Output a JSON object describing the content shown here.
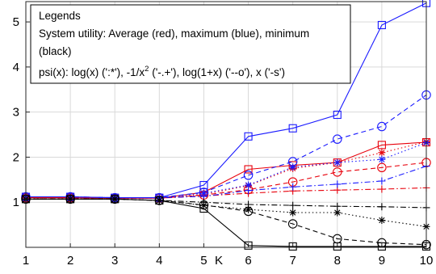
{
  "chart_data": {
    "type": "line",
    "title": "",
    "xlabel": "K",
    "ylabel": "",
    "x": [
      1,
      2,
      3,
      4,
      5,
      6,
      7,
      8,
      9,
      10
    ],
    "xlim": [
      1,
      10
    ],
    "ylim": [
      0,
      5.45
    ],
    "xticks": [
      "1",
      "2",
      "3",
      "4",
      "5",
      "6",
      "7",
      "8",
      "9",
      "10"
    ],
    "yticks": [
      "1",
      "2",
      "3",
      "4",
      "5"
    ],
    "grid": true,
    "colors": {
      "red": "#e8000b",
      "blue": "#1a1aff",
      "black": "#000000"
    },
    "legend": {
      "placement": "top-left",
      "title": "Legends",
      "line1": "System utility: Average (red), maximum (blue), minimum",
      "line2": "(black)",
      "line3_prefix": "psi(x): log(x) (':*'), -1/x",
      "line3_sup": "2",
      "line3_suffix": " ('-.+'), log(1+x) ('--o'), x ('-s')"
    },
    "series": [
      {
        "color": "red",
        "style": "dotted",
        "marker": "star",
        "values": [
          1.1,
          1.1,
          1.09,
          1.09,
          1.17,
          1.37,
          1.75,
          1.88,
          2.1,
          2.34
        ]
      },
      {
        "color": "red",
        "style": "dashdot",
        "marker": "plus",
        "values": [
          1.1,
          1.1,
          1.09,
          1.09,
          1.14,
          1.2,
          1.25,
          1.27,
          1.29,
          1.32
        ]
      },
      {
        "color": "red",
        "style": "dashed",
        "marker": "circle",
        "values": [
          1.1,
          1.1,
          1.09,
          1.09,
          1.16,
          1.28,
          1.45,
          1.67,
          1.77,
          1.88
        ]
      },
      {
        "color": "red",
        "style": "solid",
        "marker": "square",
        "values": [
          1.1,
          1.1,
          1.09,
          1.09,
          1.22,
          1.73,
          1.82,
          1.88,
          2.27,
          2.33
        ]
      },
      {
        "color": "blue",
        "style": "dotted",
        "marker": "star",
        "values": [
          1.12,
          1.12,
          1.1,
          1.1,
          1.2,
          1.38,
          1.78,
          1.88,
          1.95,
          2.32
        ]
      },
      {
        "color": "blue",
        "style": "dashdot",
        "marker": "plus",
        "values": [
          1.12,
          1.12,
          1.1,
          1.1,
          1.13,
          1.26,
          1.34,
          1.4,
          1.47,
          1.8
        ]
      },
      {
        "color": "blue",
        "style": "dashed",
        "marker": "circle",
        "values": [
          1.12,
          1.12,
          1.1,
          1.1,
          1.22,
          1.6,
          1.9,
          2.4,
          2.68,
          3.38
        ]
      },
      {
        "color": "blue",
        "style": "solid",
        "marker": "square",
        "values": [
          1.12,
          1.12,
          1.1,
          1.1,
          1.38,
          2.46,
          2.64,
          2.94,
          4.93,
          5.42
        ]
      },
      {
        "color": "black",
        "style": "dotted",
        "marker": "star",
        "values": [
          1.07,
          1.07,
          1.07,
          1.04,
          0.93,
          0.84,
          0.77,
          0.77,
          0.6,
          0.46
        ]
      },
      {
        "color": "black",
        "style": "dashdot",
        "marker": "plus",
        "values": [
          1.07,
          1.07,
          1.07,
          1.04,
          1.0,
          0.95,
          0.93,
          0.91,
          0.9,
          0.88
        ]
      },
      {
        "color": "black",
        "style": "dashed",
        "marker": "circle",
        "values": [
          1.07,
          1.07,
          1.07,
          1.04,
          0.94,
          0.8,
          0.52,
          0.19,
          0.1,
          0.06
        ]
      },
      {
        "color": "black",
        "style": "solid",
        "marker": "square",
        "values": [
          1.07,
          1.07,
          1.07,
          1.04,
          0.86,
          0.04,
          0.02,
          0.02,
          0.02,
          0.02
        ]
      }
    ]
  }
}
